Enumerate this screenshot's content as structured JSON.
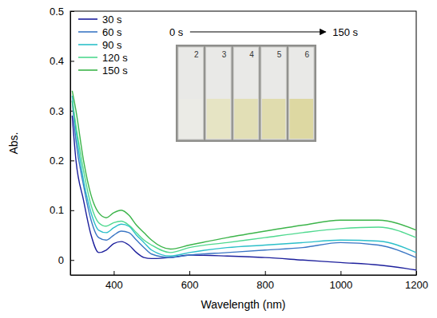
{
  "chart_data": {
    "type": "line",
    "x_label": "Wavelength (nm)",
    "y_label": "Abs.",
    "x": [
      290,
      300,
      320,
      340,
      360,
      380,
      400,
      420,
      440,
      460,
      480,
      500,
      550,
      600,
      700,
      800,
      900,
      1000,
      1100,
      1200
    ],
    "series": [
      {
        "name": "30 s",
        "color": "#1c1f9c",
        "values": [
          0.29,
          0.2,
          0.12,
          0.05,
          0.015,
          0.02,
          0.033,
          0.037,
          0.03,
          0.015,
          0.005,
          0.003,
          0.005,
          0.01,
          0.008,
          0.005,
          0.0,
          -0.005,
          -0.01,
          -0.02
        ]
      },
      {
        "name": "60 s",
        "color": "#3a76c4",
        "values": [
          0.32,
          0.24,
          0.15,
          0.08,
          0.045,
          0.04,
          0.05,
          0.058,
          0.055,
          0.04,
          0.025,
          0.012,
          0.005,
          0.01,
          0.015,
          0.02,
          0.025,
          0.035,
          0.03,
          0.005
        ]
      },
      {
        "name": "90 s",
        "color": "#2bbfc9",
        "values": [
          0.33,
          0.26,
          0.16,
          0.095,
          0.06,
          0.055,
          0.065,
          0.072,
          0.068,
          0.05,
          0.035,
          0.02,
          0.008,
          0.015,
          0.025,
          0.03,
          0.035,
          0.04,
          0.038,
          0.015
        ]
      },
      {
        "name": "120 s",
        "color": "#4fd98f",
        "values": [
          0.32,
          0.27,
          0.18,
          0.11,
          0.075,
          0.068,
          0.075,
          0.078,
          0.07,
          0.055,
          0.04,
          0.03,
          0.015,
          0.025,
          0.035,
          0.045,
          0.055,
          0.063,
          0.066,
          0.045
        ]
      },
      {
        "name": "150 s",
        "color": "#3cb44a",
        "values": [
          0.34,
          0.3,
          0.2,
          0.13,
          0.095,
          0.085,
          0.095,
          0.1,
          0.09,
          0.07,
          0.055,
          0.04,
          0.022,
          0.03,
          0.045,
          0.058,
          0.07,
          0.08,
          0.08,
          0.06
        ]
      }
    ],
    "xlim": [
      285,
      1200
    ],
    "xticks": [
      400,
      600,
      800,
      1000,
      1200
    ],
    "ylim": [
      -0.03,
      0.5
    ],
    "yticks": [
      0,
      0.1,
      0.2,
      0.3,
      0.4,
      0.5
    ],
    "legend": "upper left",
    "inset": {
      "start_label": "0 s",
      "end_label": "150 s",
      "slide_labels": [
        "2",
        "3",
        "4",
        "5",
        "6"
      ]
    }
  }
}
